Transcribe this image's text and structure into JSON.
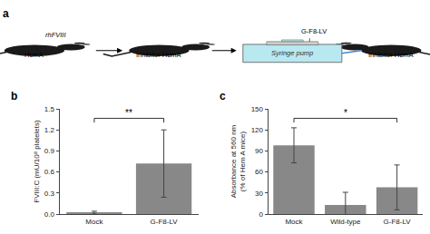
{
  "chart_data": [
    {
      "type": "illustration",
      "title": "a",
      "annotations": [
        "HemA",
        "rhFVIII",
        "Inhibitor HemA",
        "Syringe pump",
        "G-F8-LV",
        "Inhibitor HemA"
      ]
    },
    {
      "type": "bar",
      "title": "b",
      "categories": [
        "Mock",
        "G-F8-LV"
      ],
      "values": [
        0.02,
        0.72
      ],
      "errors": [
        0.02,
        0.48
      ],
      "color": "#888888",
      "ylabel": "FVIII:C (mU/10⁸ platelets)",
      "ylim": [
        0,
        1.5
      ],
      "yticks": [
        {
          "value": 0,
          "label": "0.0"
        },
        0.3,
        0.6,
        0.9,
        1.2,
        1.5
      ],
      "grid": false,
      "annotations": [
        {
          "text": "**",
          "x": [
            "Mock",
            "G-F8-LV"
          ]
        }
      ]
    },
    {
      "type": "bar",
      "title": "c",
      "categories": [
        "Mock",
        "Wild-type",
        "G-F8-LV"
      ],
      "values": [
        98,
        13,
        38
      ],
      "errors": [
        25,
        18,
        32
      ],
      "color": "#888888",
      "ylabel": "Absorbance at 560 nm\n(% of Hem A mice)",
      "ylim": [
        0,
        150
      ],
      "yticks": [
        0,
        30,
        60,
        90,
        120,
        150
      ],
      "grid": false,
      "annotations": [
        {
          "text": "*",
          "x": [
            "Mock",
            "G-F8-LV"
          ]
        }
      ]
    }
  ]
}
